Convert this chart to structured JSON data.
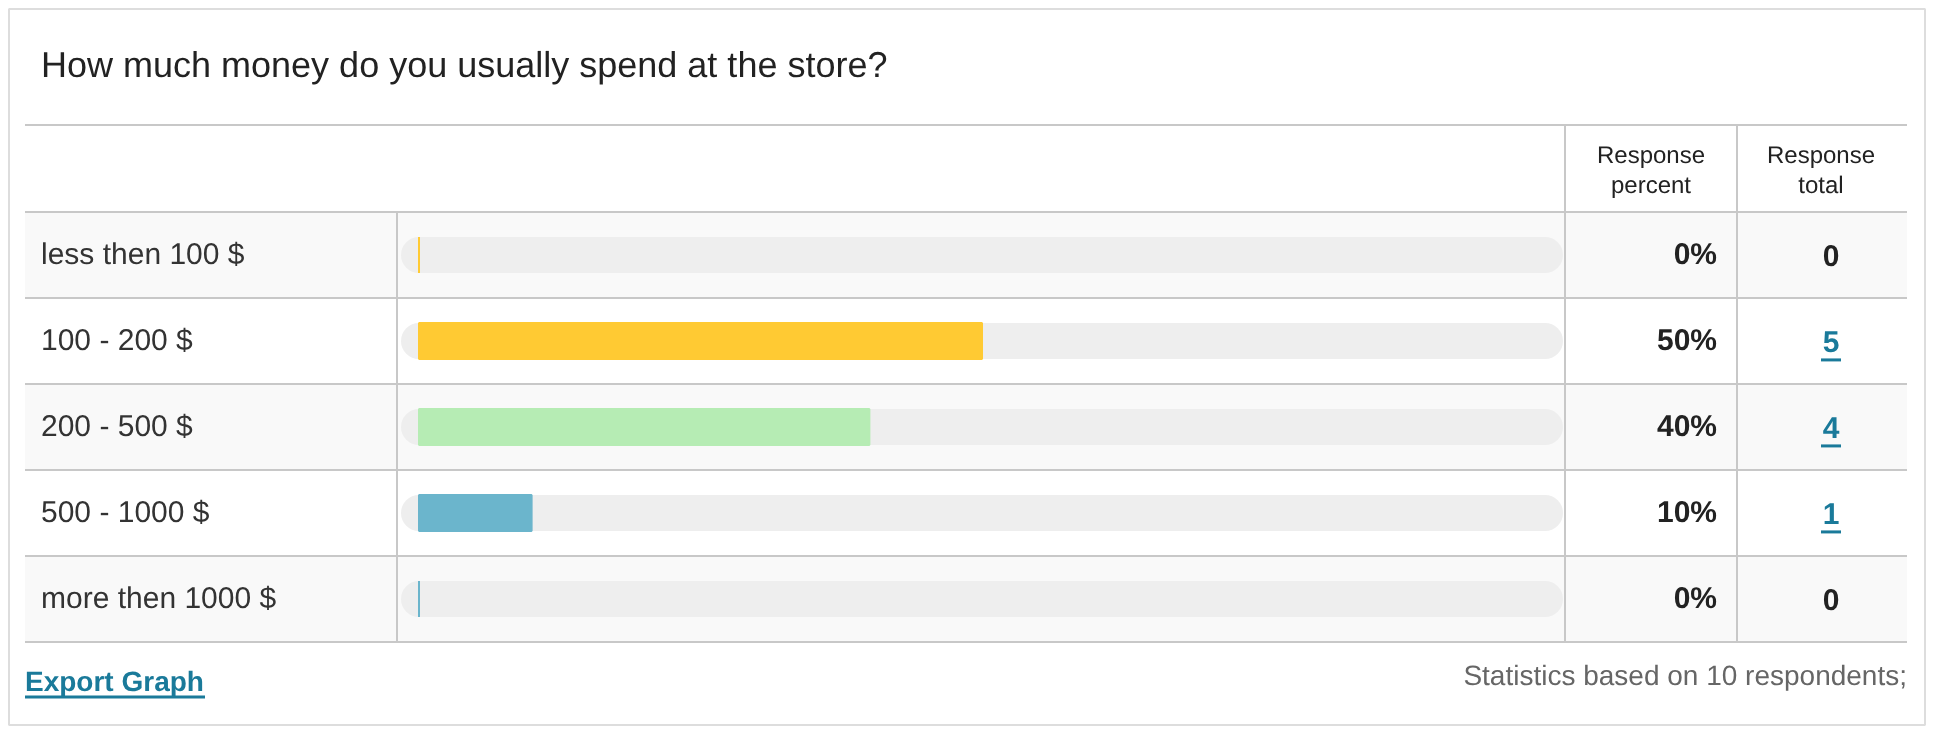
{
  "chart_data": {
    "type": "bar",
    "orientation": "horizontal",
    "title": "How much money do you usually spend at the store?",
    "categories": [
      "less then 100 $",
      "100 - 200 $",
      "200 - 500 $",
      "500 - 1000 $",
      "more then  1000 $"
    ],
    "values": [
      0,
      50,
      40,
      10,
      0
    ],
    "colors": [
      "#ffca33",
      "#ffca33",
      "#b6ecb4",
      "#6bb5cc",
      "#6bb5cc"
    ],
    "value_labels": [
      "0%",
      "50%",
      "40%",
      "10%",
      "0%"
    ],
    "xlim": [
      0,
      100
    ],
    "tick_labels": "y",
    "grid": true,
    "annotations": [
      "Response percent",
      "Response total",
      "Export Graph",
      "Statistics based on 10 respondents;",
      "0",
      "5",
      "4",
      "1",
      "0"
    ]
  }
}
